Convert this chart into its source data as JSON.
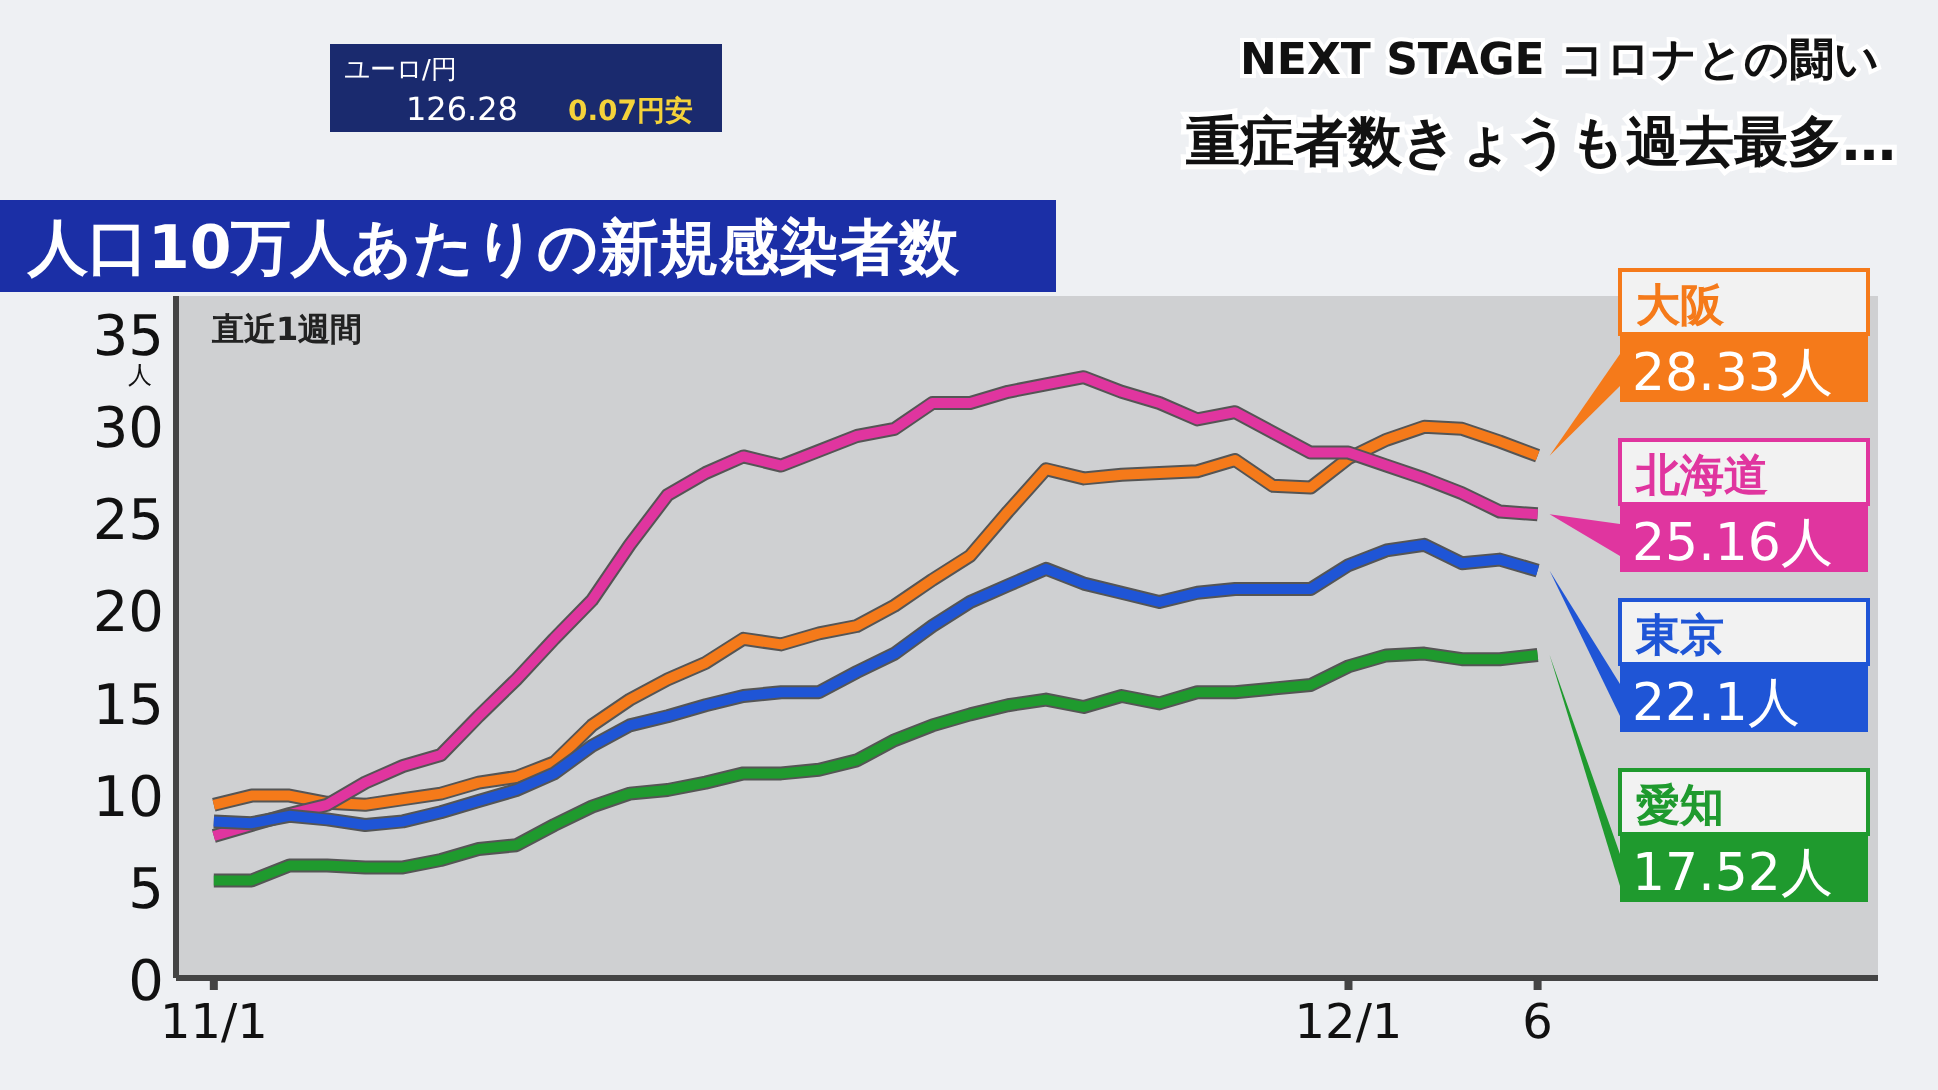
{
  "chart_data": {
    "type": "line",
    "title": "人口10万人あたりの新規感染者数",
    "ylabel": "人",
    "annotations": [
      "直近1週間",
      "NEXT STAGE コロナとの闘い",
      "重症者数きょうも過去最多…",
      "ユーロ/円",
      "126.28",
      "0.07円安"
    ],
    "x": [
      "--11-01",
      "--11-02",
      "--11-03",
      "--11-04",
      "--11-05",
      "--11-06",
      "--11-07",
      "--11-08",
      "--11-09",
      "--11-10",
      "--11-11",
      "--11-12",
      "--11-13",
      "--11-14",
      "--11-15",
      "--11-16",
      "--11-17",
      "--11-18",
      "--11-19",
      "--11-20",
      "--11-21",
      "--11-22",
      "--11-23",
      "--11-24",
      "--11-25",
      "--11-26",
      "--11-27",
      "--11-28",
      "--11-29",
      "--11-30",
      "--12-01",
      "--12-02",
      "--12-03",
      "--12-04",
      "--12-05",
      "--12-06"
    ],
    "xlim": [
      "--10-31",
      "--12-15"
    ],
    "xticks": [
      {
        "value": "--11-01",
        "label": "11/1"
      },
      {
        "value": "--12-01",
        "label": "12/1"
      },
      {
        "value": "--12-06",
        "label": "6"
      }
    ],
    "ylim": [
      0,
      37
    ],
    "yticks": [
      0,
      5,
      10,
      15,
      20,
      25,
      30,
      35
    ],
    "grid": false,
    "legend": false,
    "marker": "none",
    "line_style": "solid",
    "series": [
      {
        "name": "大阪",
        "color": "#f57a1a",
        "values": [
          9.4,
          9.9,
          9.9,
          9.5,
          9.4,
          9.7,
          10.0,
          10.6,
          10.9,
          11.7,
          13.7,
          15.1,
          16.2,
          17.1,
          18.4,
          18.1,
          18.7,
          19.1,
          20.2,
          21.6,
          22.9,
          25.3,
          27.6,
          27.1,
          27.3,
          27.4,
          27.5,
          28.1,
          26.7,
          26.6,
          28.2,
          29.2,
          29.9,
          29.8,
          29.1,
          28.33
        ],
        "value_labels": [
          null,
          null,
          null,
          null,
          null,
          null,
          null,
          null,
          null,
          null,
          null,
          null,
          null,
          null,
          null,
          null,
          null,
          null,
          null,
          null,
          null,
          null,
          null,
          null,
          null,
          null,
          null,
          null,
          null,
          null,
          null,
          null,
          null,
          null,
          null,
          "28.33人"
        ]
      },
      {
        "name": "北海道",
        "color": "#e0359f",
        "values": [
          7.7,
          8.3,
          8.9,
          9.4,
          10.6,
          11.5,
          12.1,
          14.2,
          16.2,
          18.4,
          20.5,
          23.5,
          26.2,
          27.4,
          28.3,
          27.8,
          28.6,
          29.4,
          29.8,
          31.2,
          31.2,
          31.8,
          32.2,
          32.6,
          31.8,
          31.2,
          30.3,
          30.7,
          29.6,
          28.5,
          28.5,
          27.8,
          27.1,
          26.3,
          25.3,
          25.16
        ],
        "value_labels": [
          null,
          null,
          null,
          null,
          null,
          null,
          null,
          null,
          null,
          null,
          null,
          null,
          null,
          null,
          null,
          null,
          null,
          null,
          null,
          null,
          null,
          null,
          null,
          null,
          null,
          null,
          null,
          null,
          null,
          null,
          null,
          null,
          null,
          null,
          null,
          "25.16人"
        ]
      },
      {
        "name": "東京",
        "color": "#1f55d6",
        "values": [
          8.5,
          8.4,
          8.8,
          8.6,
          8.3,
          8.5,
          9.0,
          9.6,
          10.2,
          11.1,
          12.6,
          13.7,
          14.2,
          14.8,
          15.3,
          15.5,
          15.5,
          16.6,
          17.6,
          19.1,
          20.4,
          21.3,
          22.2,
          21.4,
          20.9,
          20.4,
          20.9,
          21.1,
          21.1,
          21.1,
          22.4,
          23.2,
          23.5,
          22.5,
          22.7,
          22.1
        ],
        "value_labels": [
          null,
          null,
          null,
          null,
          null,
          null,
          null,
          null,
          null,
          null,
          null,
          null,
          null,
          null,
          null,
          null,
          null,
          null,
          null,
          null,
          null,
          null,
          null,
          null,
          null,
          null,
          null,
          null,
          null,
          null,
          null,
          null,
          null,
          null,
          null,
          "22.1人"
        ]
      },
      {
        "name": "愛知",
        "color": "#1f9a2e",
        "values": [
          5.3,
          5.3,
          6.1,
          6.1,
          6.0,
          6.0,
          6.4,
          7.0,
          7.2,
          8.3,
          9.3,
          10.0,
          10.2,
          10.6,
          11.1,
          11.1,
          11.3,
          11.8,
          12.9,
          13.7,
          14.3,
          14.8,
          15.1,
          14.7,
          15.3,
          14.9,
          15.5,
          15.5,
          15.7,
          15.9,
          16.9,
          17.5,
          17.6,
          17.3,
          17.3,
          17.52
        ],
        "value_labels": [
          null,
          null,
          null,
          null,
          null,
          null,
          null,
          null,
          null,
          null,
          null,
          null,
          null,
          null,
          null,
          null,
          null,
          null,
          null,
          null,
          null,
          null,
          null,
          null,
          null,
          null,
          null,
          null,
          null,
          null,
          null,
          null,
          null,
          null,
          null,
          "17.52人"
        ]
      }
    ]
  }
}
